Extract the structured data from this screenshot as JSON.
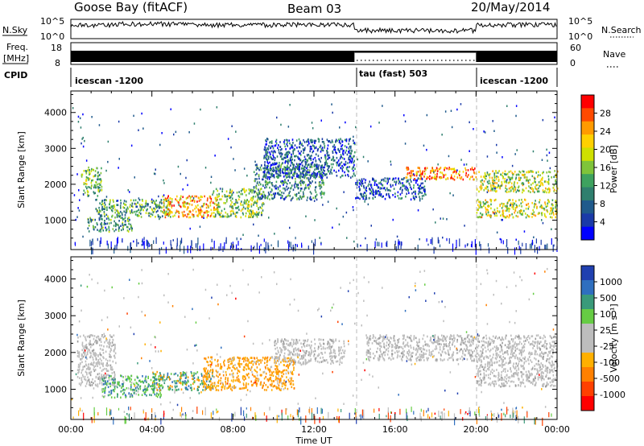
{
  "header": {
    "station": "Goose Bay (fitACF)",
    "beam": "Beam 03",
    "date": "20/May/2014"
  },
  "top_strip": {
    "nsky_label": "N.Sky",
    "nsearch_label": "N.Search",
    "nsky_ticks": [
      "10^5",
      "10^0"
    ],
    "nsearch_ticks": [
      "10^5",
      "10^0"
    ],
    "freq_label": "Freq.",
    "freq_unit": "[MHz]",
    "freq_ticks": [
      "18",
      "8"
    ],
    "nave_label": "Nave",
    "nave_ticks": [
      "60",
      "0"
    ],
    "cpid_label": "CPID",
    "cpid_segments": [
      {
        "label": "icescan -1200",
        "start_hour": 0,
        "end_hour": 14
      },
      {
        "label": "tau (fast) 503",
        "start_hour": 14,
        "end_hour": 20
      },
      {
        "label": "icescan -1200",
        "start_hour": 20,
        "end_hour": 24
      }
    ]
  },
  "chart_data": [
    {
      "type": "heatmap",
      "title": "",
      "xlabel": "Time UT",
      "ylabel": "Slant Range [km]",
      "xlim": [
        0,
        24
      ],
      "ylim": [
        180,
        4600
      ],
      "x_ticks": [
        "00:00",
        "04:00",
        "08:00",
        "12:00",
        "16:00",
        "20:00",
        "00:00"
      ],
      "y_ticks": [
        "1000",
        "2000",
        "3000",
        "4000"
      ],
      "y_tick_values": [
        1000,
        2000,
        3000,
        4000
      ],
      "colorbar": {
        "label": "Power [dB]",
        "range": [
          0,
          30
        ],
        "ticks": [
          "28",
          "24",
          "20",
          "16",
          "12",
          "8",
          "4"
        ],
        "colors": [
          "#ff0000",
          "#ff4a00",
          "#ff9a00",
          "#ffd000",
          "#cfe000",
          "#7fc43a",
          "#3ea25f",
          "#2f7f6e",
          "#1f5a8c",
          "#1a3aa8",
          "#0000ff"
        ]
      },
      "echo_regions": [
        {
          "t0": 0.5,
          "t1": 1.5,
          "r0": 1700,
          "r1": 2500,
          "level": 0.45
        },
        {
          "t0": 0.8,
          "t1": 3.0,
          "r0": 700,
          "r1": 1100,
          "level": 0.35
        },
        {
          "t0": 1.2,
          "t1": 5.0,
          "r0": 1100,
          "r1": 1600,
          "level": 0.4
        },
        {
          "t0": 4.5,
          "t1": 7.2,
          "r0": 1100,
          "r1": 1700,
          "level": 0.75
        },
        {
          "t0": 7.0,
          "t1": 9.5,
          "r0": 1100,
          "r1": 1900,
          "level": 0.5
        },
        {
          "t0": 9.0,
          "t1": 12.5,
          "r0": 1600,
          "r1": 2600,
          "level": 0.3
        },
        {
          "t0": 9.5,
          "t1": 14.0,
          "r0": 2200,
          "r1": 3300,
          "level": 0.2
        },
        {
          "t0": 14.0,
          "t1": 17.5,
          "r0": 1600,
          "r1": 2200,
          "level": 0.2
        },
        {
          "t0": 16.5,
          "t1": 20.0,
          "r0": 2150,
          "r1": 2500,
          "level": 0.8
        },
        {
          "t0": 20.0,
          "t1": 24.0,
          "r0": 1800,
          "r1": 2400,
          "level": 0.55
        },
        {
          "t0": 20.0,
          "t1": 24.0,
          "r0": 1100,
          "r1": 1600,
          "level": 0.6
        }
      ]
    },
    {
      "type": "heatmap",
      "title": "",
      "xlabel": "Time UT",
      "ylabel": "Slant Range [km]",
      "xlim": [
        0,
        24
      ],
      "ylim": [
        180,
        4600
      ],
      "x_ticks": [
        "00:00",
        "04:00",
        "08:00",
        "12:00",
        "16:00",
        "20:00",
        "00:00"
      ],
      "y_ticks": [
        "1000",
        "2000",
        "3000",
        "4000"
      ],
      "y_tick_values": [
        1000,
        2000,
        3000,
        4000
      ],
      "colorbar": {
        "label": "Velocity [m s⁻¹]",
        "range": [
          -1000,
          1000
        ],
        "ticks": [
          "1000",
          "500",
          "100",
          "25",
          "-25",
          "-100",
          "-500",
          "-1000"
        ],
        "colors": [
          "#2040b0",
          "#2f6fbf",
          "#3a9a7a",
          "#66cc44",
          "#bdbdbd",
          "#bdbdbd",
          "#ffb000",
          "#ff8000",
          "#ff4000",
          "#ff0000"
        ]
      },
      "echo_regions": [
        {
          "t0": 0.3,
          "t1": 2.2,
          "r0": 1100,
          "r1": 2500,
          "level": "ground"
        },
        {
          "t0": 1.5,
          "t1": 4.5,
          "r0": 800,
          "r1": 1400,
          "level": "positive"
        },
        {
          "t0": 4.0,
          "t1": 7.0,
          "r0": 1000,
          "r1": 1500,
          "level": "mixed"
        },
        {
          "t0": 6.5,
          "t1": 11.0,
          "r0": 1000,
          "r1": 1900,
          "level": "negative"
        },
        {
          "t0": 10.0,
          "t1": 13.5,
          "r0": 1700,
          "r1": 2400,
          "level": "ground"
        },
        {
          "t0": 14.5,
          "t1": 20.0,
          "r0": 1800,
          "r1": 2500,
          "level": "ground"
        },
        {
          "t0": 20.0,
          "t1": 24.0,
          "r0": 1100,
          "r1": 2500,
          "level": "ground"
        }
      ]
    }
  ]
}
